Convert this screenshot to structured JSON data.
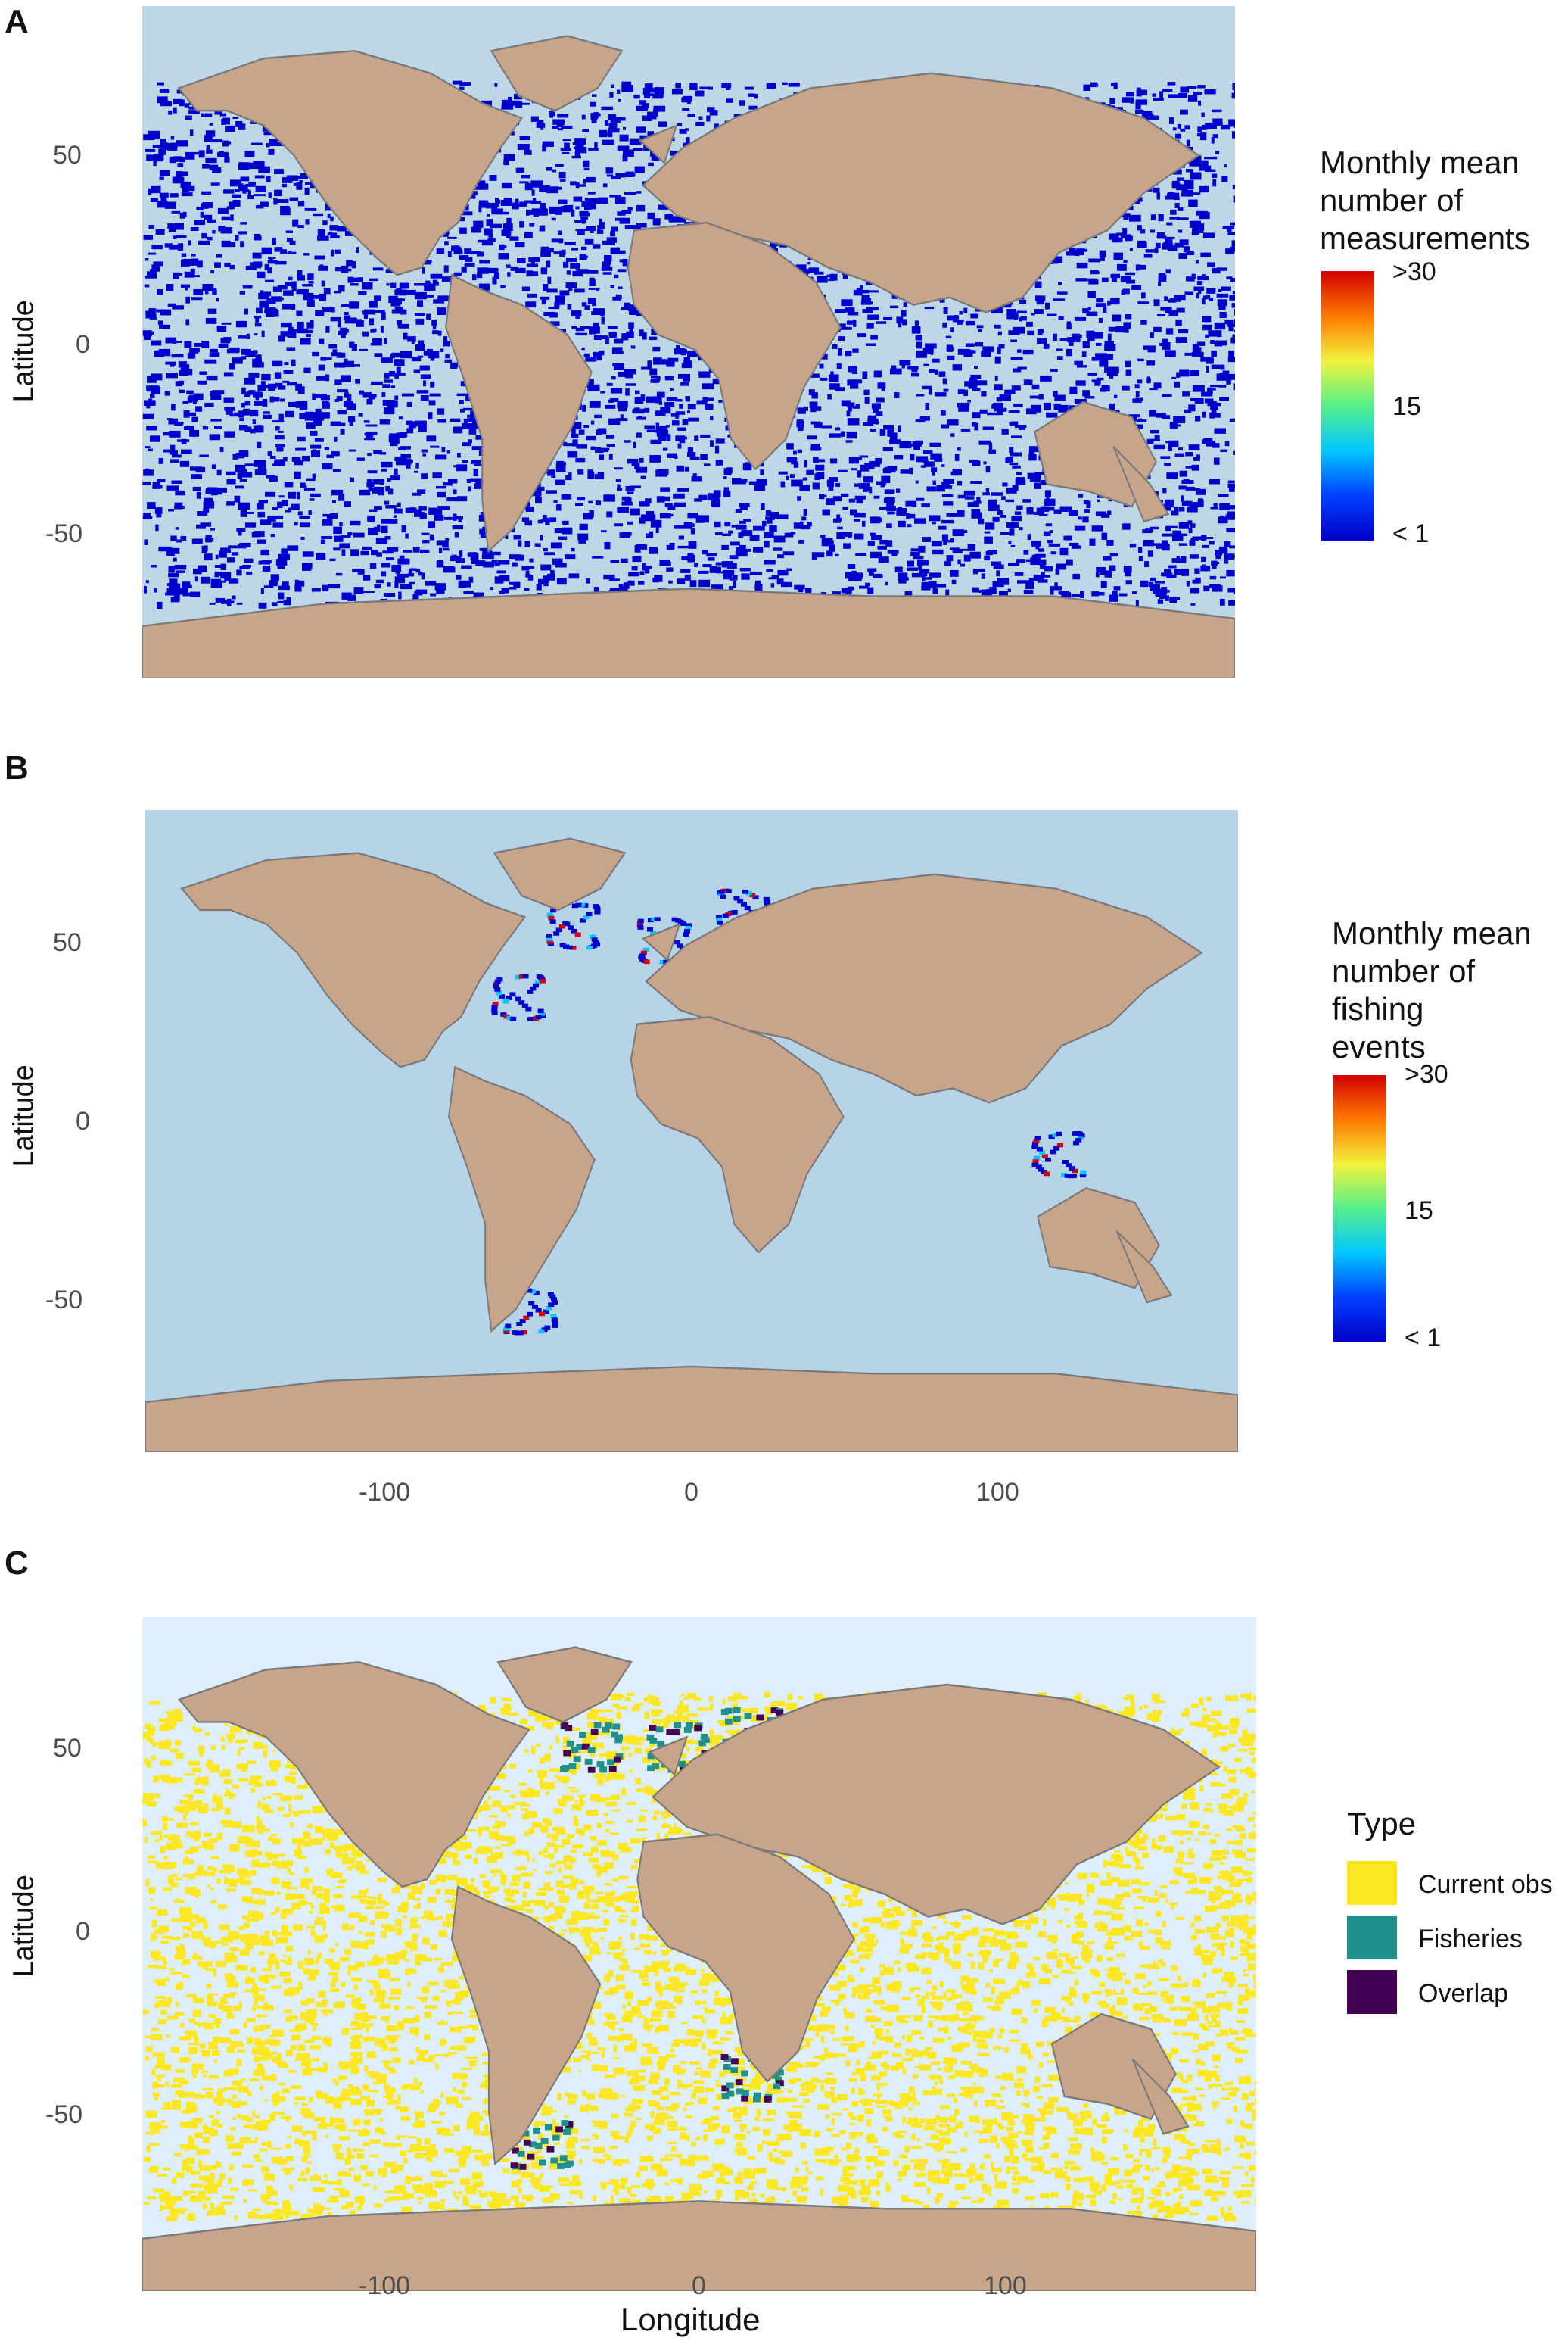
{
  "panels": [
    {
      "label": "A",
      "ylabel": "Latitude",
      "y_ticks": [
        "50",
        "0",
        "-50"
      ],
      "x_ticks": [],
      "ocean_color": "#bdd7e7",
      "data_color": "#0000cd",
      "legend": {
        "title": "Monthly mean\nnumber of\nmeasurements",
        "type": "colorbar",
        "ticks": [
          ">30",
          "15",
          "< 1"
        ]
      }
    },
    {
      "label": "B",
      "ylabel": "Latitude",
      "y_ticks": [
        "50",
        "0",
        "-50"
      ],
      "x_ticks": [
        "-100",
        "0",
        "100"
      ],
      "ocean_color": "#b7d3e8",
      "data_color": "#0000cd",
      "legend": {
        "title": "Monthly mean\n number of\n fishing\n events",
        "type": "colorbar",
        "ticks": [
          ">30",
          "15",
          "< 1"
        ]
      }
    },
    {
      "label": "C",
      "ylabel": "Latitude",
      "y_ticks": [
        "50",
        "0",
        "-50"
      ],
      "x_ticks": [
        "-100",
        "0",
        "100"
      ],
      "ocean_color": "#deeefa",
      "data_color": "#fde725",
      "legend": {
        "title": "Type",
        "type": "categorical",
        "items": [
          {
            "label": "Current obs",
            "color": "#fde725"
          },
          {
            "label": "Fisheries",
            "color": "#21908c"
          },
          {
            "label": "Overlap",
            "color": "#440154"
          }
        ]
      }
    }
  ],
  "xlabel": "Longitude",
  "land_color": "#c8a58a",
  "border_color": "#7a7a7a",
  "colorbar_colors": [
    "#d40000",
    "#ff7a00",
    "#f2f23a",
    "#55f08c",
    "#00c8ff",
    "#0040ff",
    "#0000c8"
  ]
}
